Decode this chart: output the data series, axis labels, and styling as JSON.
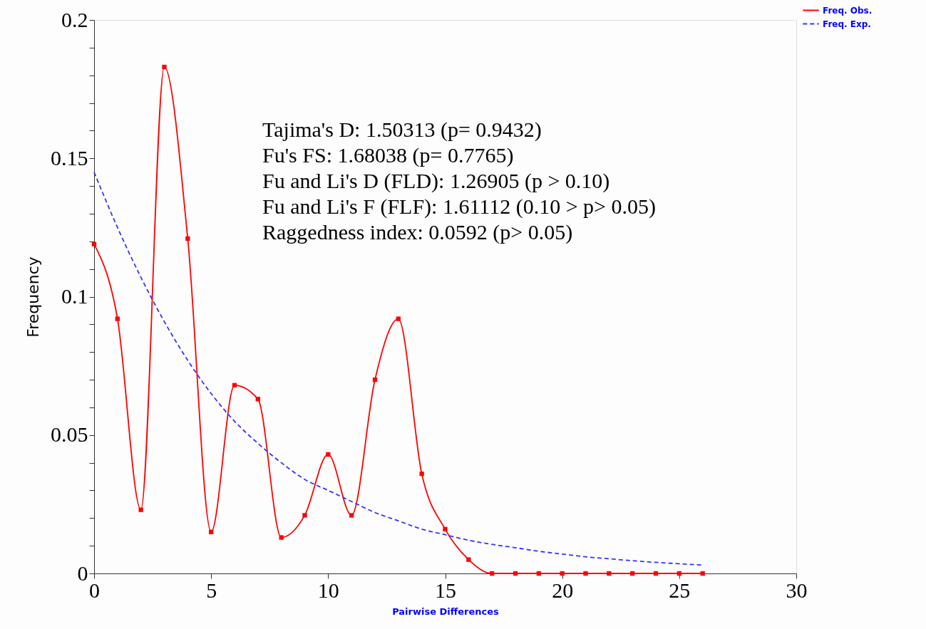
{
  "chart_data": {
    "type": "line",
    "xlabel": "Pairwise Differences",
    "ylabel": "Frequency",
    "x": [
      0,
      1,
      2,
      3,
      4,
      5,
      6,
      7,
      8,
      9,
      10,
      11,
      12,
      13,
      14,
      15,
      16,
      17,
      18,
      19,
      20,
      21,
      22,
      23,
      24,
      25,
      26
    ],
    "series": [
      {
        "name": "Freq. Obs.",
        "color": "#ff0000",
        "marker": "square",
        "line_style": "solid",
        "values": [
          0.119,
          0.092,
          0.023,
          0.183,
          0.121,
          0.015,
          0.068,
          0.063,
          0.013,
          0.021,
          0.043,
          0.021,
          0.07,
          0.092,
          0.036,
          0.016,
          0.005,
          0,
          0,
          0,
          0,
          0,
          0,
          0,
          0,
          0,
          0
        ]
      },
      {
        "name": "Freq. Exp.",
        "color": "#3333ff",
        "marker": "none",
        "line_style": "dashed",
        "values": [
          0.145,
          0.125,
          0.107,
          0.091,
          0.077,
          0.065,
          0.055,
          0.047,
          0.04,
          0.034,
          0.03,
          0.026,
          0.022,
          0.019,
          0.016,
          0.014,
          0.012,
          0.0105,
          0.0093,
          0.008,
          0.007,
          0.006,
          0.0053,
          0.0046,
          0.004,
          0.0035,
          0.003
        ]
      }
    ],
    "xlim": [
      0,
      30
    ],
    "xticks": [
      0,
      5,
      10,
      15,
      20,
      25,
      30
    ],
    "ylim": [
      0,
      0.2
    ],
    "yticks": [
      0,
      {
        "value": 0.01,
        "label": null
      },
      {
        "value": 0.02,
        "label": null
      },
      {
        "value": 0.03,
        "label": null
      },
      {
        "value": 0.04,
        "label": null
      },
      0.05,
      {
        "value": 0.06,
        "label": null
      },
      {
        "value": 0.07,
        "label": null
      },
      {
        "value": 0.08,
        "label": null
      },
      {
        "value": 0.09,
        "label": null
      },
      0.1,
      {
        "value": 0.11,
        "label": null
      },
      {
        "value": 0.12,
        "label": null
      },
      {
        "value": 0.13,
        "label": null
      },
      {
        "value": 0.14,
        "label": null
      },
      0.15,
      {
        "value": 0.16,
        "label": null
      },
      {
        "value": 0.17,
        "label": null
      },
      {
        "value": 0.18,
        "label": null
      },
      {
        "value": 0.19,
        "label": null
      },
      0.2
    ],
    "grid": false,
    "legend": "top right",
    "annotations": [
      "Tajima's D: 1.50313 (p= 0.9432)",
      "Fu's FS: 1.68038 (p= 0.7765)",
      "Fu and Li's D (FLD): 1.26905 (p > 0.10)",
      "Fu and Li's F (FLF): 1.61112 (0.10 > p> 0.05)",
      "Raggedness index: 0.0592 (p> 0.05)"
    ]
  }
}
